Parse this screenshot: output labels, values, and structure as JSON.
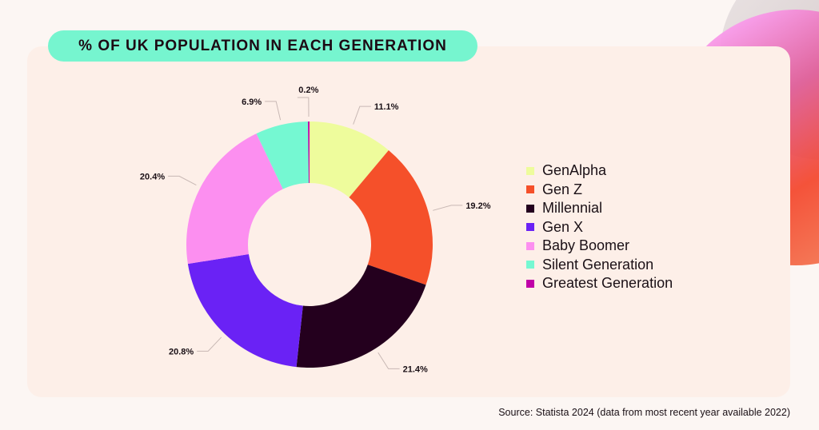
{
  "title": "% OF UK POPULATION IN EACH GENERATION",
  "source": "Source: Statista 2024 (data from most recent year available 2022)",
  "chart_data": {
    "type": "pie",
    "variant": "donut",
    "title": "% OF UK POPULATION IN EACH GENERATION",
    "categories": [
      "GenAlpha",
      "Gen Z",
      "Millennial",
      "Gen X",
      "Baby Boomer",
      "Silent Generation",
      "Greatest Generation"
    ],
    "values": [
      11.1,
      19.2,
      21.4,
      20.8,
      20.4,
      6.9,
      0.2
    ],
    "labels": [
      "11.1%",
      "19.2%",
      "21.4%",
      "20.8%",
      "20.4%",
      "6.9%",
      "0.2%"
    ],
    "colors": [
      "#eefc9c",
      "#f5502a",
      "#24001e",
      "#6a22f5",
      "#fc8ff0",
      "#75f8d2",
      "#c000a8"
    ],
    "legend": "right"
  }
}
